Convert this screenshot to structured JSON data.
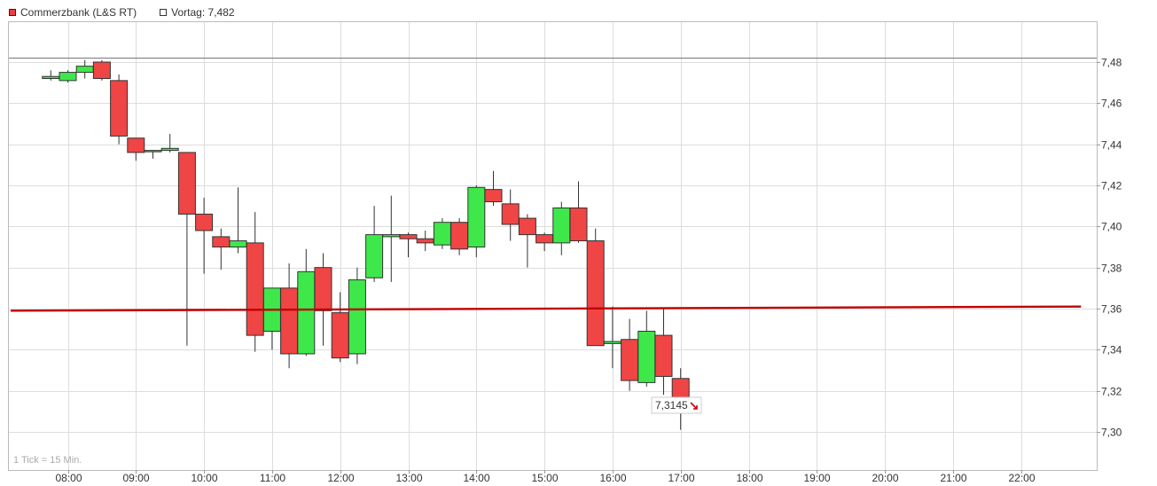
{
  "legend": {
    "main_label": "Commerzbank (L&S RT)",
    "prev_label": "Vortag: 7,482"
  },
  "tick_note": "1 Tick = 15 Min.",
  "last_price_label": "7,3145",
  "colors": {
    "up": "#3ee84a",
    "down": "#f04545",
    "outline": "#333333",
    "support": "#c00000",
    "grid": "#dddddd"
  },
  "chart_data": {
    "type": "candlestick",
    "title": "",
    "xlabel": "",
    "ylabel": "",
    "ylim": [
      7.28,
      7.5
    ],
    "yticks": [
      7.3,
      7.32,
      7.34,
      7.36,
      7.38,
      7.4,
      7.42,
      7.44,
      7.46,
      7.48
    ],
    "ytick_labels": [
      "7,30",
      "7,32",
      "7,34",
      "7,36",
      "7,38",
      "7,40",
      "7,42",
      "7,44",
      "7,46",
      "7,48"
    ],
    "xlim": [
      "07:45",
      "23:00"
    ],
    "xticks": [
      "08:00",
      "09:00",
      "10:00",
      "11:00",
      "12:00",
      "13:00",
      "14:00",
      "15:00",
      "16:00",
      "17:00",
      "18:00",
      "19:00",
      "20:00",
      "21:00",
      "22:00"
    ],
    "grid": true,
    "previous_close": 7.482,
    "support_line": {
      "start": [
        "07:45",
        7.359
      ],
      "end": [
        "22:45",
        7.361
      ]
    },
    "last_price": 7.3145,
    "candles": [
      {
        "t": "07:45",
        "o": 7.472,
        "h": 7.476,
        "l": 7.471,
        "c": 7.473
      },
      {
        "t": "08:00",
        "o": 7.471,
        "h": 7.476,
        "l": 7.47,
        "c": 7.475
      },
      {
        "t": "08:15",
        "o": 7.475,
        "h": 7.481,
        "l": 7.472,
        "c": 7.478
      },
      {
        "t": "08:30",
        "o": 7.48,
        "h": 7.481,
        "l": 7.471,
        "c": 7.472
      },
      {
        "t": "08:45",
        "o": 7.471,
        "h": 7.474,
        "l": 7.44,
        "c": 7.444
      },
      {
        "t": "09:00",
        "o": 7.443,
        "h": 7.443,
        "l": 7.432,
        "c": 7.436
      },
      {
        "t": "09:15",
        "o": 7.437,
        "h": 7.437,
        "l": 7.433,
        "c": 7.437
      },
      {
        "t": "09:30",
        "o": 7.437,
        "h": 7.445,
        "l": 7.436,
        "c": 7.438
      },
      {
        "t": "09:45",
        "o": 7.436,
        "h": 7.436,
        "l": 7.342,
        "c": 7.406
      },
      {
        "t": "10:00",
        "o": 7.406,
        "h": 7.414,
        "l": 7.377,
        "c": 7.398
      },
      {
        "t": "10:15",
        "o": 7.395,
        "h": 7.399,
        "l": 7.379,
        "c": 7.39
      },
      {
        "t": "10:30",
        "o": 7.39,
        "h": 7.419,
        "l": 7.387,
        "c": 7.393
      },
      {
        "t": "10:45",
        "o": 7.392,
        "h": 7.407,
        "l": 7.339,
        "c": 7.347
      },
      {
        "t": "11:00",
        "o": 7.349,
        "h": 7.37,
        "l": 7.34,
        "c": 7.37
      },
      {
        "t": "11:15",
        "o": 7.37,
        "h": 7.382,
        "l": 7.331,
        "c": 7.338
      },
      {
        "t": "11:30",
        "o": 7.338,
        "h": 7.389,
        "l": 7.337,
        "c": 7.378
      },
      {
        "t": "11:45",
        "o": 7.38,
        "h": 7.387,
        "l": 7.342,
        "c": 7.359
      },
      {
        "t": "12:00",
        "o": 7.358,
        "h": 7.368,
        "l": 7.334,
        "c": 7.336
      },
      {
        "t": "12:15",
        "o": 7.338,
        "h": 7.38,
        "l": 7.333,
        "c": 7.374
      },
      {
        "t": "12:30",
        "o": 7.375,
        "h": 7.41,
        "l": 7.373,
        "c": 7.396
      },
      {
        "t": "12:45",
        "o": 7.395,
        "h": 7.415,
        "l": 7.373,
        "c": 7.396
      },
      {
        "t": "13:00",
        "o": 7.396,
        "h": 7.397,
        "l": 7.385,
        "c": 7.394
      },
      {
        "t": "13:15",
        "o": 7.394,
        "h": 7.398,
        "l": 7.388,
        "c": 7.392
      },
      {
        "t": "13:30",
        "o": 7.391,
        "h": 7.404,
        "l": 7.389,
        "c": 7.402
      },
      {
        "t": "13:45",
        "o": 7.402,
        "h": 7.404,
        "l": 7.386,
        "c": 7.389
      },
      {
        "t": "14:00",
        "o": 7.39,
        "h": 7.42,
        "l": 7.385,
        "c": 7.419
      },
      {
        "t": "14:15",
        "o": 7.418,
        "h": 7.427,
        "l": 7.41,
        "c": 7.412
      },
      {
        "t": "14:30",
        "o": 7.411,
        "h": 7.418,
        "l": 7.393,
        "c": 7.401
      },
      {
        "t": "14:45",
        "o": 7.404,
        "h": 7.406,
        "l": 7.38,
        "c": 7.396
      },
      {
        "t": "15:00",
        "o": 7.396,
        "h": 7.397,
        "l": 7.388,
        "c": 7.392
      },
      {
        "t": "15:15",
        "o": 7.392,
        "h": 7.412,
        "l": 7.386,
        "c": 7.409
      },
      {
        "t": "15:30",
        "o": 7.409,
        "h": 7.422,
        "l": 7.392,
        "c": 7.393
      },
      {
        "t": "15:45",
        "o": 7.393,
        "h": 7.399,
        "l": 7.342,
        "c": 7.342
      },
      {
        "t": "16:00",
        "o": 7.343,
        "h": 7.361,
        "l": 7.331,
        "c": 7.344
      },
      {
        "t": "16:15",
        "o": 7.345,
        "h": 7.355,
        "l": 7.32,
        "c": 7.325
      },
      {
        "t": "16:30",
        "o": 7.324,
        "h": 7.359,
        "l": 7.322,
        "c": 7.349
      },
      {
        "t": "16:45",
        "o": 7.347,
        "h": 7.36,
        "l": 7.318,
        "c": 7.327
      },
      {
        "t": "17:00",
        "o": 7.326,
        "h": 7.331,
        "l": 7.301,
        "c": 7.314
      }
    ]
  }
}
